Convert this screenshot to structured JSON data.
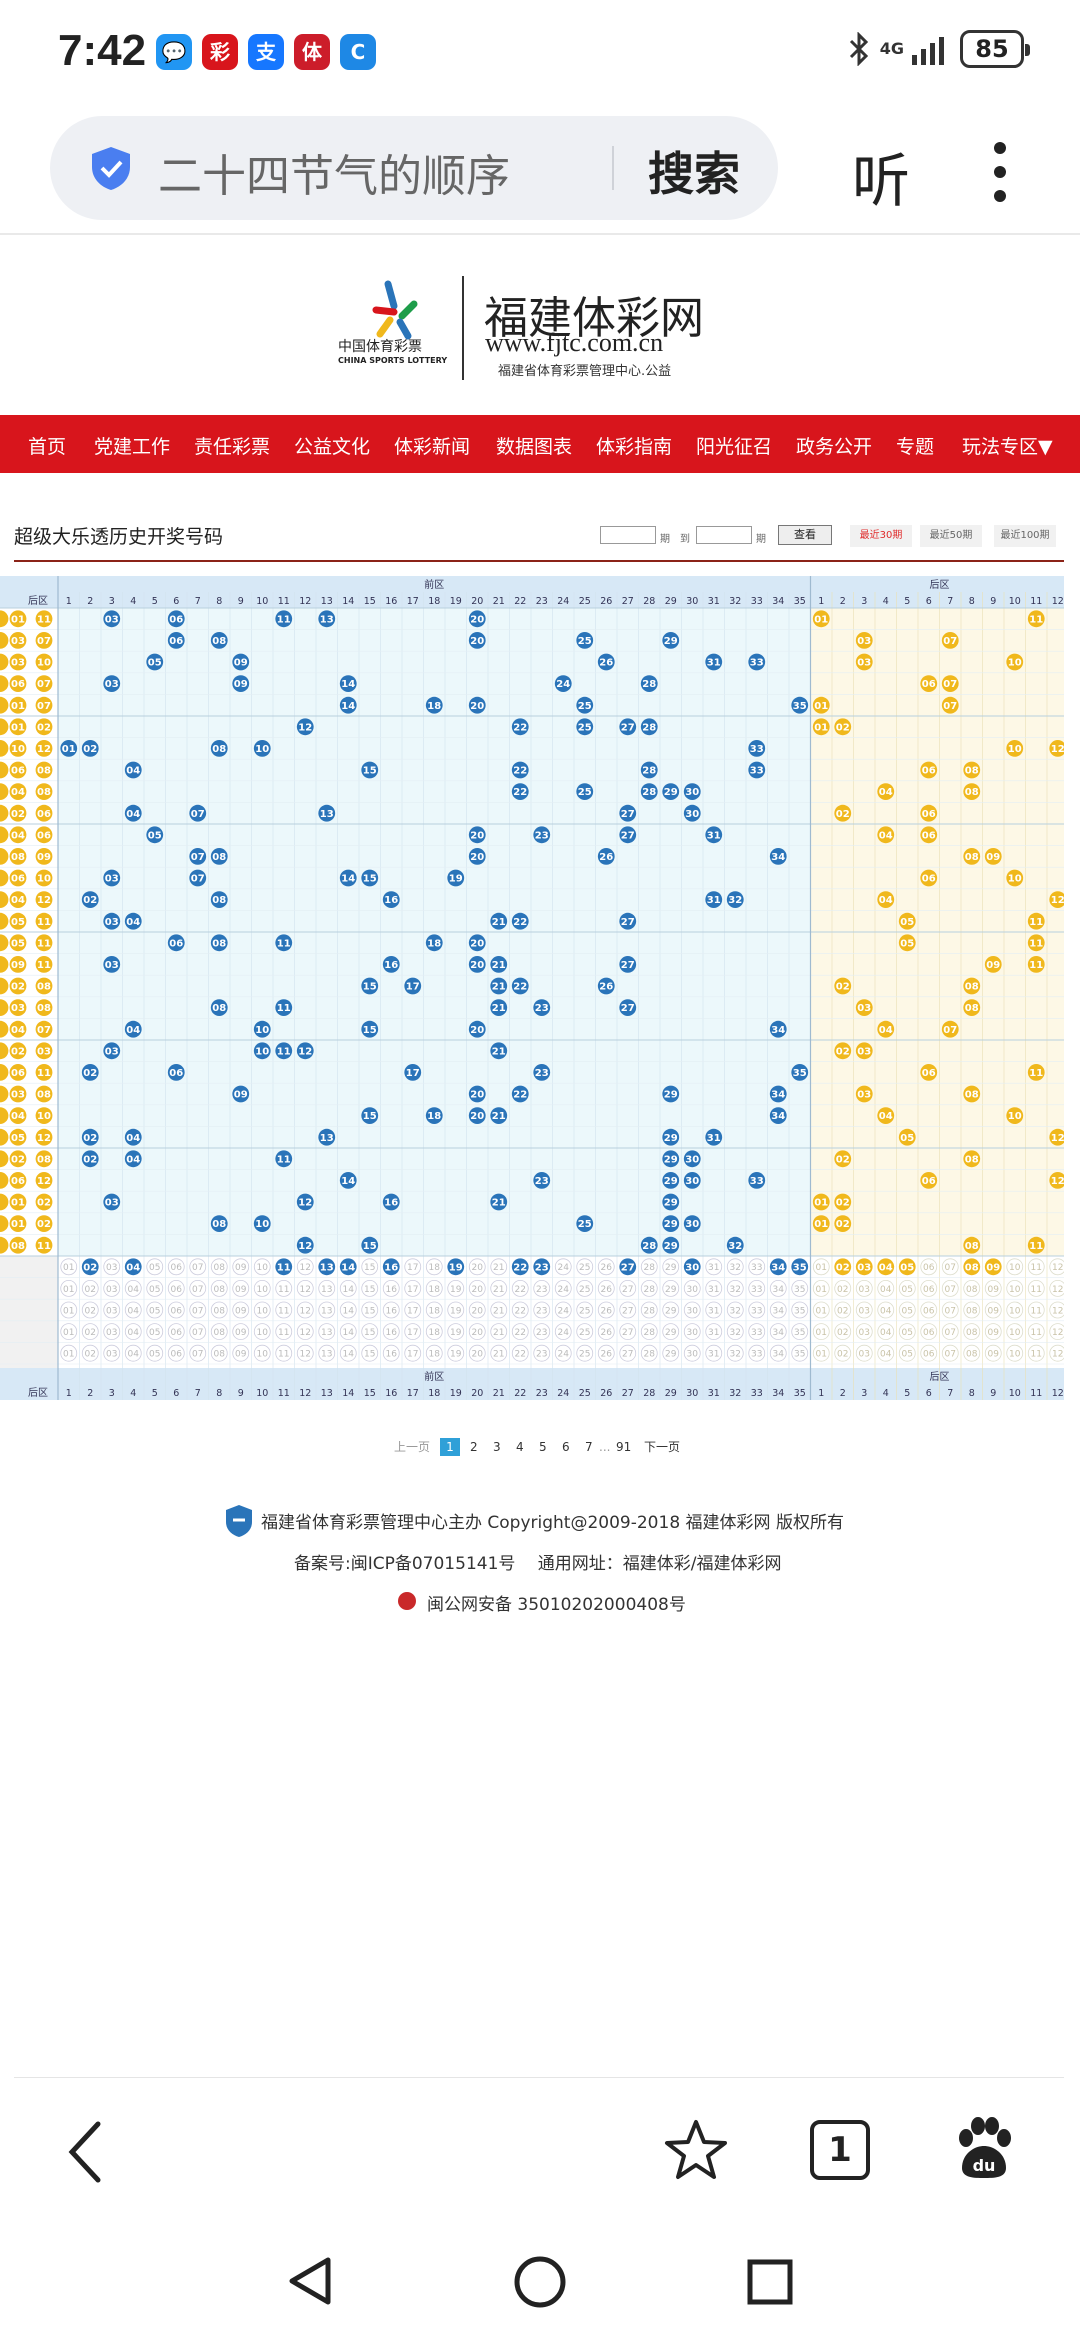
{
  "status_bar": {
    "time": "7:42",
    "network": "4G",
    "battery": "85",
    "apps": [
      {
        "name": "message-app",
        "glyph": "💬",
        "color": "#2196f3"
      },
      {
        "name": "lottery-app",
        "glyph": "彩",
        "color": "#d8151c"
      },
      {
        "name": "alipay-app",
        "glyph": "支",
        "color": "#1677ff"
      },
      {
        "name": "sports-app",
        "glyph": "体",
        "color": "#cc1d2a"
      },
      {
        "name": "browser-app",
        "glyph": "C",
        "color": "#1e88e5"
      }
    ]
  },
  "browser": {
    "search_query": "二十四节气的顺序",
    "search_button": "搜索",
    "listen_button": "听"
  },
  "site": {
    "logo_cn": "中国体育彩票",
    "logo_en": "CHINA SPORTS LOTTERY",
    "name": "福建体彩网",
    "url": "www.fjtc.com.cn",
    "subtitle": "福建省体育彩票管理中心.公益"
  },
  "nav": [
    "首页",
    "党建工作",
    "责任彩票",
    "公益文化",
    "体彩新闻",
    "数据图表",
    "体彩指南",
    "阳光征召",
    "政务公开",
    "专题",
    "玩法专区▼"
  ],
  "page": {
    "title": "超级大乐透历史开奖号码",
    "qi": "期",
    "dao": "到",
    "query_button": "查看",
    "ranges": [
      "最近30期",
      "最近50期",
      "最近100期"
    ]
  },
  "table": {
    "front_zone_label": "前区",
    "back_zone_label": "后区",
    "front_numbers": [
      "1",
      "2",
      "3",
      "4",
      "5",
      "6",
      "7",
      "8",
      "9",
      "10",
      "11",
      "12",
      "13",
      "14",
      "15",
      "16",
      "17",
      "18",
      "19",
      "20",
      "21",
      "22",
      "23",
      "24",
      "25",
      "26",
      "27",
      "28",
      "29",
      "30",
      "31",
      "32",
      "33",
      "34",
      "35"
    ],
    "back_numbers": [
      "1",
      "2",
      "3",
      "4",
      "5",
      "6",
      "7",
      "8",
      "9",
      "10",
      "11",
      "12"
    ],
    "colors": {
      "front_ball": "#2a74b9",
      "back_ball": "#f0b81c",
      "front_bg": "#ecf8fb",
      "back_bg": "#fdf8e6",
      "header_bg": "#d7e8f6"
    },
    "draws": [
      {
        "front": [
          3,
          6,
          11,
          13,
          20
        ],
        "back": [
          1,
          11
        ]
      },
      {
        "front": [
          6,
          8,
          20,
          25,
          29
        ],
        "back": [
          3,
          7
        ]
      },
      {
        "front": [
          5,
          9,
          26,
          31,
          33
        ],
        "back": [
          3,
          10
        ]
      },
      {
        "front": [
          3,
          9,
          14,
          24,
          28
        ],
        "back": [
          6,
          7
        ]
      },
      {
        "front": [
          14,
          18,
          20,
          25,
          35
        ],
        "back": [
          1,
          7
        ]
      },
      {
        "front": [
          12,
          22,
          25,
          27,
          28
        ],
        "back": [
          1,
          2
        ]
      },
      {
        "front": [
          1,
          2,
          8,
          10,
          33
        ],
        "back": [
          10,
          12
        ]
      },
      {
        "front": [
          4,
          15,
          22,
          28,
          33
        ],
        "back": [
          6,
          8
        ]
      },
      {
        "front": [
          22,
          25,
          28,
          29,
          30
        ],
        "back": [
          4,
          8
        ]
      },
      {
        "front": [
          4,
          7,
          13,
          27,
          30
        ],
        "back": [
          2,
          6
        ]
      },
      {
        "front": [
          5,
          20,
          23,
          27,
          31
        ],
        "back": [
          4,
          6
        ]
      },
      {
        "front": [
          7,
          8,
          20,
          26,
          34
        ],
        "back": [
          8,
          9
        ]
      },
      {
        "front": [
          3,
          7,
          14,
          15,
          19
        ],
        "back": [
          6,
          10
        ]
      },
      {
        "front": [
          2,
          8,
          16,
          31,
          32
        ],
        "back": [
          4,
          12
        ]
      },
      {
        "front": [
          3,
          4,
          21,
          22,
          27
        ],
        "back": [
          5,
          11
        ]
      },
      {
        "front": [
          6,
          8,
          11,
          18,
          20
        ],
        "back": [
          5,
          11
        ]
      },
      {
        "front": [
          3,
          16,
          20,
          21,
          27
        ],
        "back": [
          9,
          11
        ]
      },
      {
        "front": [
          15,
          17,
          21,
          22,
          26
        ],
        "back": [
          2,
          8
        ]
      },
      {
        "front": [
          8,
          11,
          21,
          23,
          27
        ],
        "back": [
          3,
          8
        ]
      },
      {
        "front": [
          4,
          10,
          15,
          20,
          34
        ],
        "back": [
          4,
          7
        ]
      },
      {
        "front": [
          3,
          10,
          11,
          12,
          21
        ],
        "back": [
          2,
          3
        ]
      },
      {
        "front": [
          2,
          6,
          17,
          23,
          35
        ],
        "back": [
          6,
          11
        ]
      },
      {
        "front": [
          9,
          20,
          22,
          29,
          34
        ],
        "back": [
          3,
          8
        ]
      },
      {
        "front": [
          15,
          18,
          20,
          21,
          34
        ],
        "back": [
          4,
          10
        ]
      },
      {
        "front": [
          2,
          4,
          13,
          29,
          31
        ],
        "back": [
          5,
          12
        ]
      },
      {
        "front": [
          2,
          4,
          11,
          29,
          30
        ],
        "back": [
          2,
          8
        ]
      },
      {
        "front": [
          14,
          23,
          29,
          30,
          33
        ],
        "back": [
          6,
          12
        ]
      },
      {
        "front": [
          3,
          12,
          16,
          21,
          29
        ],
        "back": [
          1,
          2
        ]
      },
      {
        "front": [
          8,
          10,
          25,
          29,
          30
        ],
        "back": [
          1,
          2
        ]
      },
      {
        "front": [
          12,
          15,
          28,
          29,
          32
        ],
        "back": [
          8,
          11
        ]
      }
    ],
    "stat_front": [
      2,
      4,
      11,
      13,
      14,
      16,
      19,
      22,
      23,
      27,
      30,
      34,
      35
    ],
    "stat_back": [
      2,
      3,
      4,
      5,
      8,
      9
    ]
  },
  "pagination": {
    "prev": "上一页",
    "pages": [
      "1",
      "2",
      "3",
      "4",
      "5",
      "6",
      "7"
    ],
    "ellipsis": "...",
    "last": "91",
    "next": "下一页",
    "current": "1"
  },
  "footer": {
    "line1": "福建省体育彩票管理中心主办 Copyright@2009-2018 福建体彩网 版权所有",
    "line2": "备案号:闽ICP备07015141号　 通用网址：福建体彩/福建体彩网",
    "line3": "闽公网安备 35010202000408号"
  },
  "browser_nav": {
    "tab_count": "1"
  }
}
